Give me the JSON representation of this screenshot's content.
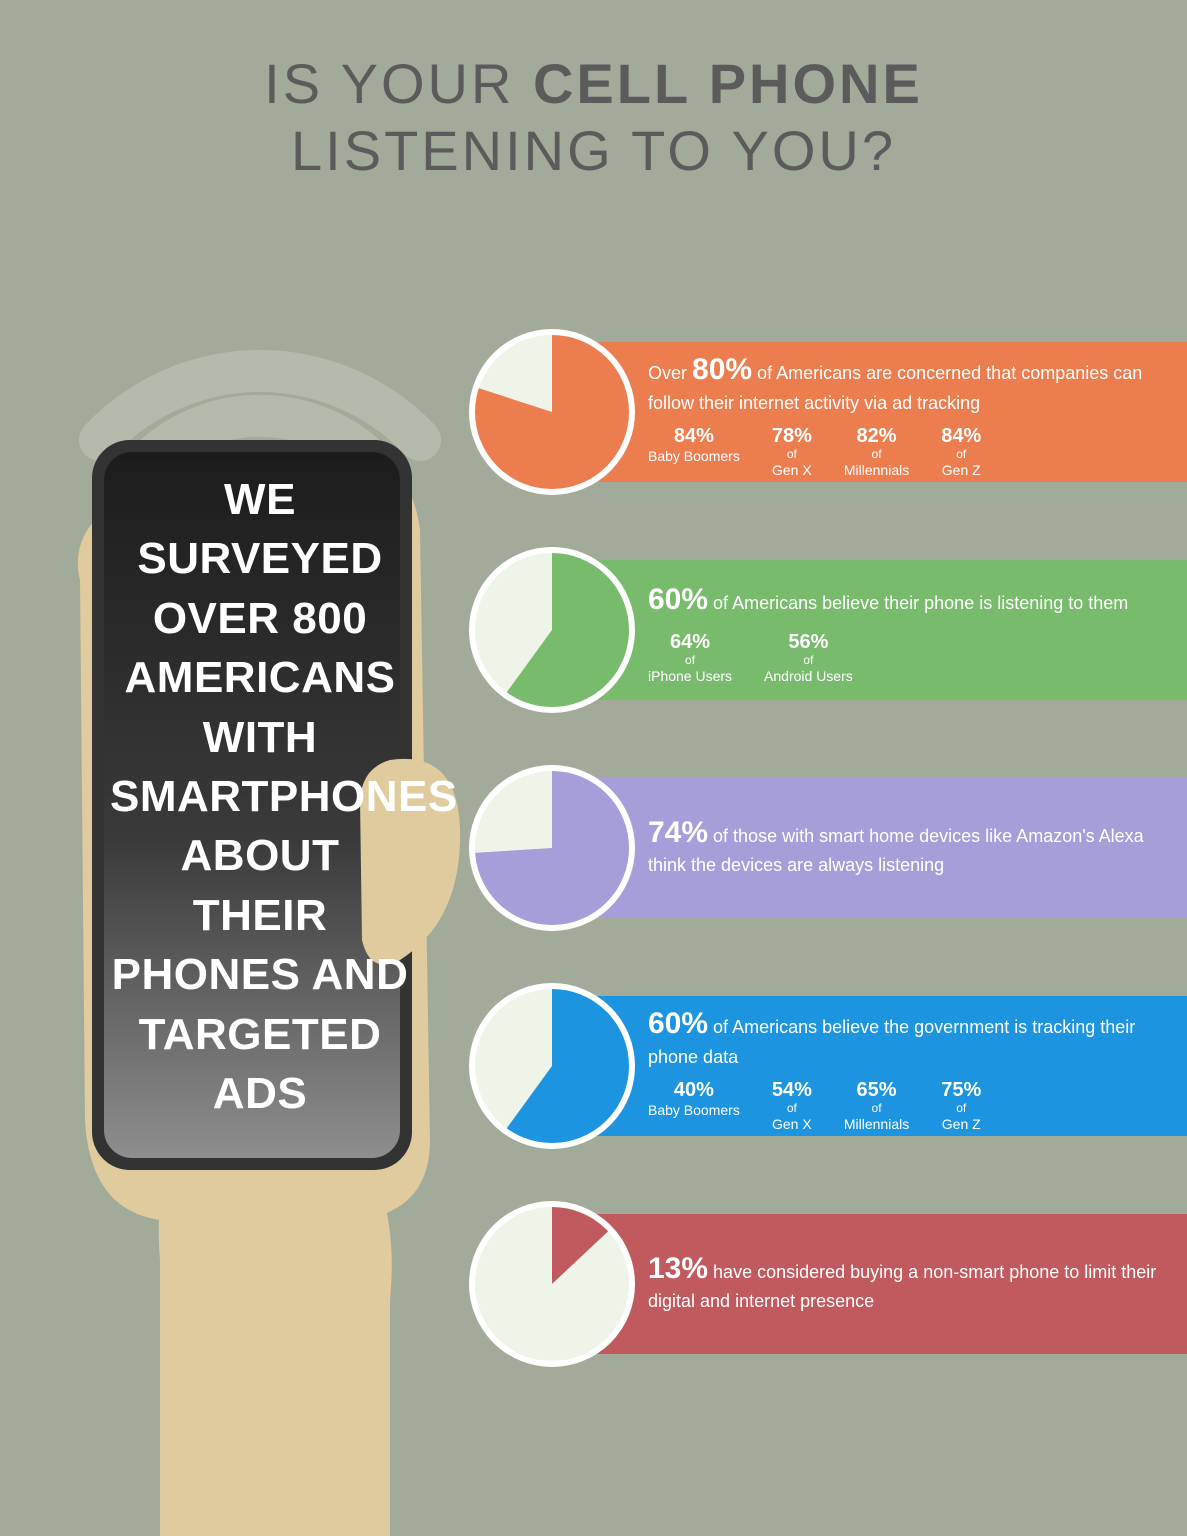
{
  "title": {
    "line1_pre": "IS YOUR ",
    "line1_bold": "CELL PHONE",
    "line2": "LISTENING TO YOU?",
    "color": "#5b5b5b"
  },
  "background_color": "#a2aa9a",
  "wifi_arc_color": "#b4bbac",
  "hand": {
    "skin": "#dfcb9e",
    "phone_stroke": "#333333"
  },
  "phone_text": "WE SURVEYED OVER 800 AMERICANS WITH SMARTPHONES ABOUT THEIR PHONES AND TARGETED ADS",
  "pie_outline": "#ffffff",
  "pie_remainder": "#eef4e7",
  "stats": [
    {
      "color": "#ec7d4f",
      "percent": 80,
      "desc_pre": "Over ",
      "desc_pct": "80%",
      "desc_post": " of Americans are concerned that companies can follow their internet activity via ad tracking",
      "breakdown": [
        {
          "pct": "84%",
          "label": "Baby Boomers"
        },
        {
          "pct": "78%",
          "of": "of",
          "label": "Gen X"
        },
        {
          "pct": "82%",
          "of": "of",
          "label": "Millennials"
        },
        {
          "pct": "84%",
          "of": "of",
          "label": "Gen Z"
        }
      ]
    },
    {
      "color": "#78bb6c",
      "percent": 60,
      "desc_pre": "",
      "desc_pct": "60%",
      "desc_post": " of Americans believe their phone is listening to them",
      "breakdown": [
        {
          "pct": "64%",
          "of": "of",
          "label": "iPhone Users"
        },
        {
          "pct": "56%",
          "of": "of",
          "label": "Android Users"
        }
      ]
    },
    {
      "color": "#a69ed8",
      "percent": 74,
      "desc_pre": "",
      "desc_pct": "74%",
      "desc_post": " of those with smart home devices like Amazon's Alexa think the devices are always listening",
      "breakdown": []
    },
    {
      "color": "#1c94e0",
      "percent": 60,
      "desc_pre": "",
      "desc_pct": "60%",
      "desc_post": " of Americans believe the government is tracking their phone data",
      "breakdown": [
        {
          "pct": "40%",
          "label": "Baby Boomers"
        },
        {
          "pct": "54%",
          "of": "of",
          "label": "Gen X"
        },
        {
          "pct": "65%",
          "of": "of",
          "label": "Millennials"
        },
        {
          "pct": "75%",
          "of": "of",
          "label": "Gen Z"
        }
      ]
    },
    {
      "color": "#c05a5e",
      "percent": 13,
      "desc_pre": "",
      "desc_pct": "13%",
      "desc_post": " have considered buying a non-smart phone to limit their digital and internet presence",
      "breakdown": []
    }
  ]
}
